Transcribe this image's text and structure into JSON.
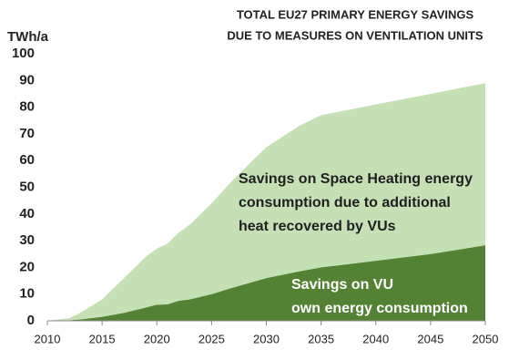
{
  "chart_data": {
    "type": "stacked_area",
    "title": [
      "TOTAL EU27 PRIMARY ENERGY SAVINGS",
      "DUE TO MEASURES ON VENTILATION UNITS"
    ],
    "y_label": "TWh/a",
    "x": [
      2010,
      2012,
      2013,
      2015,
      2017,
      2019,
      2020,
      2021,
      2022,
      2023,
      2025,
      2027,
      2030,
      2033,
      2035,
      2040,
      2045,
      2050
    ],
    "series": [
      {
        "color": "#548235",
        "values": [
          0,
          0.2,
          0.5,
          1.5,
          3,
          5,
          6,
          6.2,
          7.5,
          8,
          10,
          12.5,
          16,
          18.5,
          20,
          22.5,
          25,
          28.3
        ]
      },
      {
        "color": "#c5e0b4",
        "values": [
          0,
          0.8,
          2.5,
          6.5,
          13,
          19,
          21,
          22.8,
          25.5,
          28,
          34,
          40.5,
          49,
          54.5,
          57,
          58.5,
          60,
          60.7
        ]
      }
    ],
    "annotations": [
      {
        "lines": [
          "Savings on Space Heating energy",
          "consumption due to additional",
          "heat recovered by VUs"
        ],
        "color": "#1f1f1f"
      },
      {
        "lines": [
          "Savings on VU",
          "own energy consumption"
        ],
        "color": "#ffffff"
      }
    ],
    "xlim": [
      2010,
      2050
    ],
    "xticks": [
      2010,
      2015,
      2020,
      2025,
      2030,
      2035,
      2040,
      2045,
      2050
    ],
    "ylim": [
      0,
      100
    ],
    "yticks": [
      0,
      10,
      20,
      30,
      40,
      50,
      60,
      70,
      80,
      90,
      100
    ],
    "grid": false
  }
}
